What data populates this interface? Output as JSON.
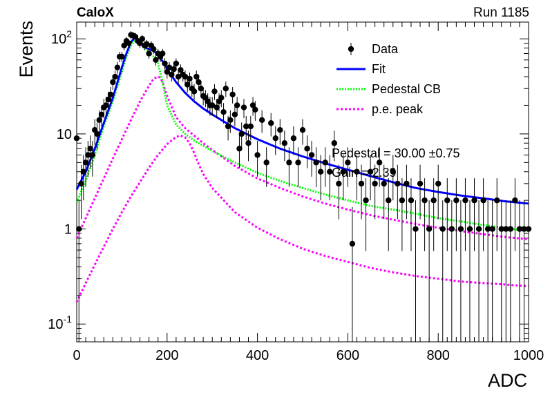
{
  "header": {
    "left": "CaloX",
    "right": "Run 1185"
  },
  "stats": {
    "line1": "Pedestal = 30.00 ±0.75",
    "line2": "Gain = 2.39"
  },
  "colors": {
    "data": "#000000",
    "fit": "#0000ff",
    "pedestal": "#00ff00",
    "pe": "#ff00ff"
  },
  "chart_data": {
    "type": "scatter",
    "xlabel": "ADC",
    "ylabel": "Events",
    "xlim": [
      0,
      1000
    ],
    "ylim": [
      0.065,
      150
    ],
    "y_scale": "log",
    "x_ticks": [
      0,
      200,
      400,
      600,
      800,
      1000
    ],
    "x_tick_labels": [
      "0",
      "200",
      "400",
      "600",
      "800",
      "1000"
    ],
    "y_ticks": [
      0.1,
      1,
      10,
      100
    ],
    "legend_position": "top-right",
    "grid": false,
    "series": [
      {
        "name": "Data",
        "kind": "points_with_errors",
        "x": [
          0,
          5,
          10,
          15,
          20,
          25,
          30,
          35,
          40,
          45,
          50,
          55,
          60,
          65,
          70,
          75,
          80,
          85,
          90,
          95,
          100,
          105,
          110,
          115,
          120,
          125,
          130,
          135,
          140,
          145,
          150,
          155,
          160,
          165,
          170,
          175,
          180,
          185,
          190,
          195,
          200,
          205,
          210,
          215,
          220,
          225,
          230,
          235,
          240,
          245,
          250,
          255,
          260,
          265,
          270,
          275,
          280,
          285,
          290,
          295,
          300,
          305,
          310,
          315,
          320,
          325,
          330,
          335,
          340,
          345,
          350,
          355,
          360,
          365,
          370,
          375,
          380,
          385,
          390,
          395,
          400,
          410,
          420,
          430,
          440,
          450,
          460,
          470,
          480,
          490,
          500,
          510,
          520,
          530,
          540,
          550,
          560,
          570,
          580,
          590,
          600,
          610,
          620,
          630,
          640,
          650,
          660,
          670,
          680,
          690,
          700,
          710,
          720,
          730,
          740,
          750,
          760,
          770,
          780,
          790,
          800,
          810,
          820,
          830,
          840,
          850,
          860,
          870,
          880,
          890,
          900,
          910,
          920,
          930,
          940,
          950,
          960,
          970,
          980,
          990,
          1000
        ],
        "y": [
          9,
          1,
          3,
          4,
          5,
          6,
          7,
          6,
          11,
          10,
          14,
          16,
          19,
          20,
          23,
          26,
          35,
          40,
          50,
          65,
          65,
          85,
          95,
          90,
          110,
          108,
          105,
          95,
          90,
          100,
          85,
          88,
          70,
          85,
          78,
          60,
          70,
          65,
          70,
          55,
          45,
          50,
          42,
          48,
          55,
          40,
          47,
          42,
          40,
          33,
          38,
          30,
          28,
          40,
          35,
          30,
          25,
          24,
          22,
          20,
          20,
          28,
          19,
          22,
          24,
          17,
          30,
          12,
          14,
          26,
          16,
          20,
          7,
          10,
          19,
          12,
          8,
          12,
          20,
          18,
          6,
          14,
          5,
          13,
          9,
          11,
          8,
          5,
          9,
          5,
          11,
          7,
          6,
          5,
          4,
          5,
          4,
          8,
          3,
          4,
          5,
          0.7,
          4,
          3,
          2,
          4,
          3,
          5,
          3,
          2,
          4,
          3,
          2,
          3,
          2,
          1,
          3,
          2,
          1,
          2,
          3,
          1,
          2,
          1,
          2,
          1,
          2,
          1,
          2,
          1,
          2,
          1,
          1,
          2,
          1,
          1,
          1,
          2,
          1,
          1,
          1
        ]
      },
      {
        "name": "Fit",
        "kind": "line",
        "x": [
          0,
          20,
          40,
          60,
          80,
          100,
          110,
          120,
          130,
          140,
          150,
          160,
          170,
          180,
          190,
          200,
          220,
          240,
          260,
          280,
          300,
          350,
          400,
          450,
          500,
          550,
          600,
          650,
          700,
          750,
          800,
          850,
          900,
          950,
          1000
        ],
        "y": [
          2.6,
          4,
          7,
          13,
          24,
          50,
          70,
          92,
          105,
          95,
          82,
          78,
          75,
          68,
          58,
          48,
          35,
          27,
          22,
          18.5,
          16,
          11.5,
          8.8,
          7,
          5.8,
          4.9,
          4.2,
          3.6,
          3.1,
          2.7,
          2.45,
          2.25,
          2.1,
          1.95,
          1.85
        ]
      },
      {
        "name": "Pedestal CB",
        "kind": "line",
        "x": [
          0,
          20,
          40,
          60,
          80,
          100,
          110,
          120,
          130,
          140,
          150,
          160,
          170,
          180,
          190,
          200,
          220,
          240,
          260,
          280,
          300,
          350,
          400,
          450,
          500,
          550,
          600,
          650,
          700,
          750,
          800,
          850,
          900,
          950,
          1000
        ],
        "y": [
          1.9,
          3.2,
          6,
          12,
          22,
          45,
          65,
          85,
          100,
          93,
          80,
          72,
          65,
          55,
          35,
          20,
          12.5,
          10,
          8.5,
          7.5,
          6.6,
          5,
          3.9,
          3.2,
          2.7,
          2.3,
          2,
          1.75,
          1.6,
          1.45,
          1.3,
          1.2,
          1.1,
          1.02,
          0.95
        ]
      },
      {
        "name": "p.e. peak",
        "kind": "line",
        "x": [
          0,
          20,
          40,
          60,
          80,
          100,
          120,
          140,
          160,
          170,
          180,
          185,
          190,
          200,
          220,
          240,
          260,
          280,
          300,
          350,
          400,
          450,
          500,
          550,
          600,
          650,
          700,
          750,
          800,
          850,
          900,
          950,
          1000
        ],
        "y": [
          0.8,
          1.3,
          2.1,
          3.4,
          5.5,
          8.8,
          14,
          22,
          32,
          38,
          40,
          39,
          35,
          25,
          15,
          11.5,
          9.6,
          8,
          6.8,
          4.6,
          3.4,
          2.7,
          2.2,
          1.85,
          1.6,
          1.4,
          1.25,
          1.13,
          1.03,
          0.95,
          0.88,
          0.82,
          0.78
        ]
      },
      {
        "name": "",
        "kind": "line",
        "x": [
          0,
          20,
          40,
          60,
          80,
          100,
          120,
          140,
          160,
          180,
          200,
          220,
          230,
          240,
          250,
          260,
          270,
          280,
          300,
          350,
          400,
          450,
          500,
          550,
          600,
          650,
          700,
          750,
          800,
          850,
          900,
          950,
          1000
        ],
        "y": [
          0.17,
          0.27,
          0.42,
          0.65,
          1,
          1.5,
          2.2,
          3.1,
          4.4,
          6,
          7.8,
          9.3,
          9.6,
          9.2,
          8,
          6.3,
          4.8,
          3.8,
          2.7,
          1.5,
          1.03,
          0.78,
          0.62,
          0.52,
          0.45,
          0.39,
          0.35,
          0.32,
          0.3,
          0.28,
          0.27,
          0.26,
          0.25
        ]
      }
    ]
  }
}
